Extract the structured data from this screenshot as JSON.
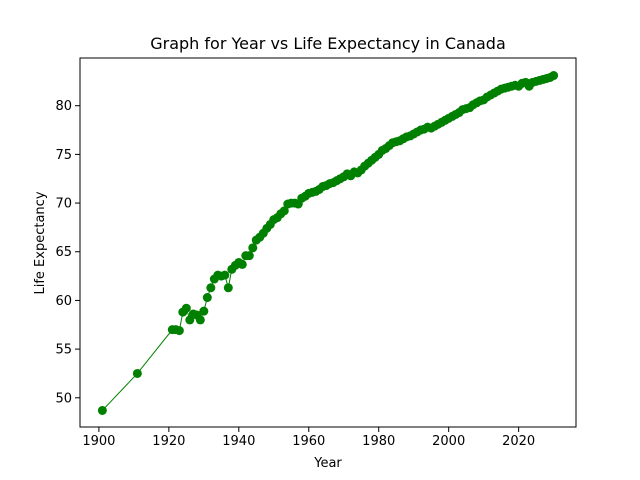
{
  "chart_data": {
    "type": "line",
    "title": "Graph for Year vs Life Expectancy in Canada",
    "xlabel": "Year",
    "ylabel": "Life Expectancy",
    "xlim": [
      1894.6,
      2036.4
    ],
    "ylim": [
      47.0,
      84.9
    ],
    "xticks": [
      1900,
      1920,
      1940,
      1960,
      1980,
      2000,
      2020
    ],
    "yticks": [
      50,
      55,
      60,
      65,
      70,
      75,
      80
    ],
    "grid": false,
    "legend": "none",
    "marker": "circle",
    "color": "#008000",
    "series": [
      {
        "x": [
          1901,
          1911,
          1921,
          1922,
          1923,
          1924,
          1925,
          1926,
          1927,
          1928,
          1929,
          1930,
          1931,
          1932,
          1933,
          1934,
          1935,
          1936,
          1937,
          1938,
          1939,
          1940,
          1941,
          1942,
          1943,
          1944,
          1945,
          1946,
          1947,
          1948,
          1949,
          1950,
          1951,
          1952,
          1953,
          1954,
          1955,
          1956,
          1957,
          1958,
          1959,
          1960,
          1961,
          1962,
          1963,
          1964,
          1965,
          1966,
          1967,
          1968,
          1969,
          1970,
          1971,
          1972,
          1973,
          1974,
          1975,
          1976,
          1977,
          1978,
          1979,
          1980,
          1981,
          1982,
          1983,
          1984,
          1985,
          1986,
          1987,
          1988,
          1989,
          1990,
          1991,
          1992,
          1993,
          1994,
          1995,
          1996,
          1997,
          1998,
          1999,
          2000,
          2001,
          2002,
          2003,
          2004,
          2005,
          2006,
          2007,
          2008,
          2009,
          2010,
          2011,
          2012,
          2013,
          2014,
          2015,
          2016,
          2017,
          2018,
          2019,
          2020,
          2021,
          2022,
          2023,
          2024,
          2025,
          2026,
          2027,
          2028,
          2029,
          2030
        ],
        "y": [
          48.7,
          52.5,
          57.0,
          57.0,
          56.9,
          58.8,
          59.2,
          58.0,
          58.6,
          58.5,
          58.0,
          58.9,
          60.3,
          61.3,
          62.2,
          62.6,
          62.5,
          62.6,
          61.3,
          63.2,
          63.6,
          63.9,
          63.7,
          64.6,
          64.6,
          65.4,
          66.2,
          66.5,
          66.9,
          67.4,
          67.8,
          68.3,
          68.5,
          68.9,
          69.2,
          69.9,
          70.0,
          70.0,
          69.9,
          70.5,
          70.7,
          71.0,
          71.1,
          71.2,
          71.4,
          71.7,
          71.8,
          72.0,
          72.1,
          72.3,
          72.5,
          72.7,
          73.0,
          72.8,
          73.2,
          73.1,
          73.4,
          73.8,
          74.1,
          74.4,
          74.7,
          75.0,
          75.4,
          75.6,
          75.9,
          76.2,
          76.3,
          76.4,
          76.6,
          76.8,
          76.9,
          77.1,
          77.3,
          77.5,
          77.6,
          77.8,
          77.7,
          77.9,
          78.1,
          78.3,
          78.5,
          78.7,
          78.9,
          79.1,
          79.3,
          79.6,
          79.7,
          79.8,
          80.1,
          80.3,
          80.5,
          80.6,
          80.9,
          81.1,
          81.3,
          81.5,
          81.7,
          81.8,
          81.9,
          82.0,
          82.1,
          82.0,
          82.3,
          82.4,
          82.0,
          82.4,
          82.5,
          82.6,
          82.7,
          82.8,
          82.9,
          83.1
        ]
      }
    ]
  }
}
